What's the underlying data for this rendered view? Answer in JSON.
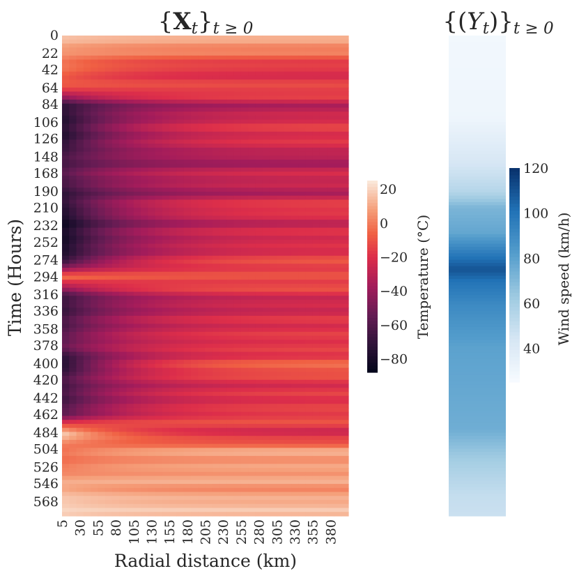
{
  "chart_data": [
    {
      "type": "heatmap",
      "title_brace_open": "{",
      "title_symbol": "X",
      "title_sub_main": "t",
      "title_brace_close": "}",
      "title_sub_tail": "t ≥ 0",
      "xlabel": "Radial distance (km)",
      "ylabel": "Time (Hours)",
      "x_tick_labels": [
        "5",
        "30",
        "55",
        "80",
        "105",
        "130",
        "155",
        "180",
        "205",
        "230",
        "255",
        "280",
        "305",
        "330",
        "355",
        "380"
      ],
      "y_tick_labels": [
        "0",
        "22",
        "42",
        "64",
        "84",
        "106",
        "126",
        "148",
        "168",
        "190",
        "210",
        "232",
        "252",
        "274",
        "294",
        "316",
        "336",
        "358",
        "378",
        "400",
        "420",
        "442",
        "462",
        "484",
        "504",
        "526",
        "546",
        "568"
      ],
      "colorbar_label": "Temperature (°C)",
      "colorbar_ticks": [
        20,
        0,
        -20,
        -40,
        -60,
        -80
      ],
      "colorbar_tick_labels": [
        "20",
        "0",
        "−20",
        "−40",
        "−60",
        "−80"
      ],
      "colorbar_range": [
        -88,
        25
      ],
      "colormap": "rocket",
      "time_range_hours": [
        0,
        585
      ],
      "radial_range_km": [
        5,
        405
      ],
      "time_profile": {
        "hours": [
          0,
          22,
          42,
          64,
          84,
          106,
          126,
          148,
          168,
          190,
          210,
          232,
          252,
          274,
          294,
          316,
          336,
          358,
          378,
          400,
          420,
          442,
          462,
          484,
          504,
          526,
          546,
          568
        ],
        "inner_temperature_c": [
          15,
          5,
          -5,
          -10,
          -70,
          -78,
          -75,
          -65,
          -60,
          -70,
          -76,
          -85,
          -82,
          -75,
          -2,
          -65,
          -70,
          -60,
          -55,
          -80,
          -62,
          -68,
          -55,
          20,
          -5,
          0,
          10,
          18
        ],
        "outer_temperature_c": [
          8,
          0,
          -25,
          -10,
          -30,
          -20,
          -15,
          -35,
          -25,
          -30,
          -15,
          -25,
          -20,
          -15,
          -10,
          -20,
          -25,
          -15,
          -20,
          -5,
          -15,
          -20,
          -10,
          -25,
          5,
          10,
          5,
          12
        ]
      }
    },
    {
      "type": "heatmap",
      "title_brace_open": "{(",
      "title_symbol": "Y",
      "title_sub_main": "t",
      "title_brace_close": ")}",
      "title_sub_tail": "t ≥ 0",
      "colorbar_label": "Wind speed (km/h)",
      "colorbar_ticks": [
        120,
        100,
        80,
        60,
        40
      ],
      "colorbar_range": [
        25,
        120
      ],
      "colormap": "Blues",
      "wind_profile": {
        "hours": [
          0,
          100,
          160,
          190,
          210,
          240,
          270,
          285,
          300,
          330,
          380,
          420,
          480,
          520,
          560,
          585
        ],
        "wind_kmh": [
          28,
          30,
          45,
          55,
          72,
          78,
          100,
          110,
          100,
          90,
          80,
          78,
          75,
          60,
          50,
          48
        ]
      }
    }
  ]
}
